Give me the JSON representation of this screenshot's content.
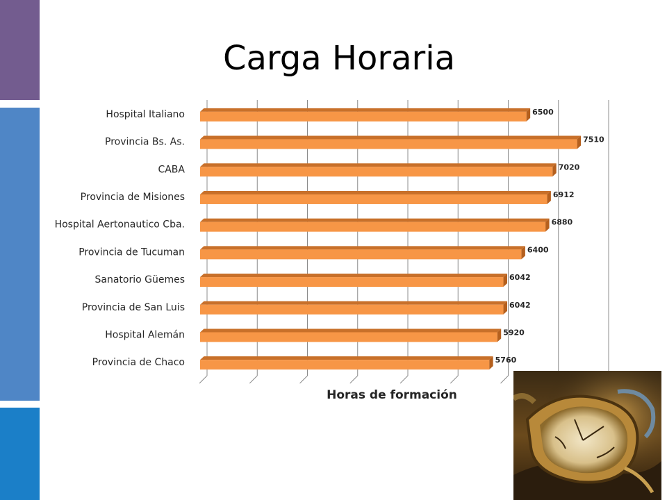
{
  "slide": {
    "title": "Carga Horaria",
    "accent_colors": {
      "purple": "#735c8f",
      "blue": "#4f86c6",
      "blue_dark": "#1b7fc8"
    }
  },
  "chart_data": {
    "type": "bar",
    "orientation": "horizontal",
    "style": "3d",
    "categories": [
      "Hospital Italiano",
      "Provincia Bs. As.",
      "CABA",
      "Provincia de Misiones",
      "Hospital Aertonautico Cba.",
      "Provincia de Tucuman",
      "Sanatorio Güemes",
      "Provincia de San Luis",
      "Hospital Alemán",
      "Provincia de Chaco"
    ],
    "values": [
      6500,
      7510,
      7020,
      6912,
      6880,
      6400,
      6042,
      6042,
      5920,
      5760
    ],
    "data_labels": true,
    "xlabel": "Horas de formación",
    "ylabel": "",
    "xlim": [
      0,
      8000
    ],
    "grid": true,
    "legend": "none",
    "bar_color": "#f79646"
  },
  "image": {
    "name": "soft-watch-painting"
  }
}
